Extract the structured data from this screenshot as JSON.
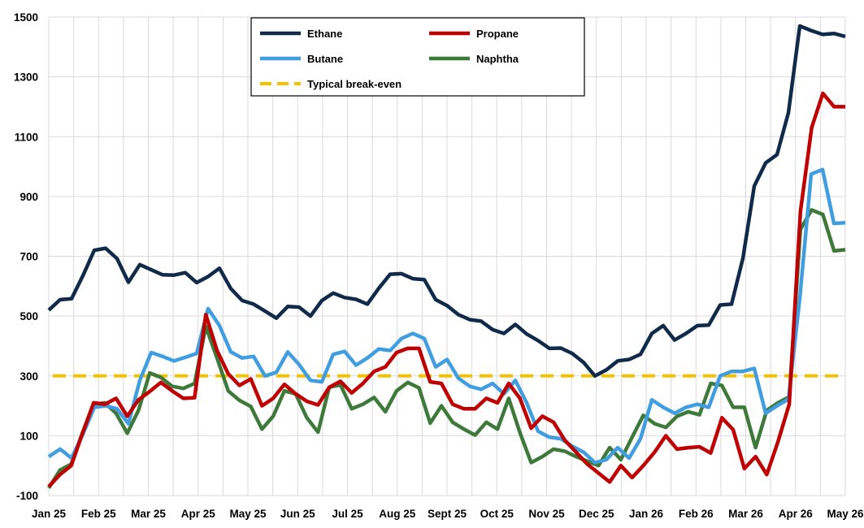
{
  "chart_data": {
    "type": "line",
    "title": "",
    "xlabel": "",
    "ylabel": "",
    "ylim": [
      -100,
      1500
    ],
    "y_ticks": [
      -100,
      100,
      300,
      500,
      700,
      900,
      1100,
      1300,
      1500
    ],
    "x_ticks": [
      "Jan 25",
      "Feb 25",
      "Mar 25",
      "Apr 25",
      "May 25",
      "Jun 25",
      "Jul 25",
      "Aug 25",
      "Sept 25",
      "Oct 25",
      "Nov 25",
      "Dec 25",
      "Jan 26",
      "Feb 26",
      "Mar 26",
      "Apr 26",
      "May 26"
    ],
    "grid": "vertical",
    "legend_position": "top-center",
    "series": [
      {
        "name": "Ethane",
        "color": "#0f2a4a",
        "dash": false,
        "values": [
          520,
          555,
          558,
          635,
          720,
          727,
          692,
          613,
          672,
          655,
          638,
          637,
          645,
          612,
          632,
          660,
          592,
          552,
          540,
          517,
          493,
          532,
          530,
          500,
          552,
          577,
          562,
          556,
          540,
          593,
          640,
          642,
          625,
          622,
          555,
          535,
          505,
          488,
          483,
          455,
          442,
          472,
          440,
          418,
          392,
          393,
          375,
          345,
          300,
          320,
          350,
          355,
          372,
          442,
          468,
          420,
          442,
          468,
          470,
          537,
          540,
          693,
          935,
          1012,
          1040,
          1180,
          1470,
          1455,
          1442,
          1445,
          1435
        ]
      },
      {
        "name": "Propane",
        "color": "#c00000",
        "dash": false,
        "values": [
          -70,
          -30,
          0,
          107,
          210,
          205,
          225,
          165,
          220,
          248,
          278,
          250,
          225,
          227,
          505,
          385,
          307,
          268,
          290,
          200,
          225,
          272,
          240,
          215,
          203,
          262,
          282,
          243,
          275,
          315,
          330,
          378,
          392,
          392,
          280,
          275,
          205,
          190,
          190,
          225,
          210,
          275,
          225,
          125,
          165,
          145,
          85,
          45,
          5,
          -25,
          -55,
          0,
          -40,
          0,
          45,
          100,
          55,
          60,
          63,
          42,
          160,
          120,
          -10,
          30,
          -30,
          80,
          205,
          850,
          1130,
          1245,
          1200,
          1200
        ]
      },
      {
        "name": "Butane",
        "color": "#3f9de0",
        "dash": false,
        "values": [
          30,
          55,
          25,
          105,
          195,
          200,
          190,
          140,
          285,
          378,
          365,
          350,
          362,
          375,
          525,
          468,
          380,
          360,
          365,
          300,
          312,
          380,
          338,
          285,
          280,
          372,
          382,
          336,
          360,
          390,
          385,
          425,
          442,
          425,
          330,
          355,
          292,
          265,
          255,
          275,
          240,
          285,
          210,
          115,
          95,
          90,
          65,
          45,
          10,
          20,
          60,
          25,
          90,
          220,
          195,
          175,
          195,
          205,
          195,
          300,
          315,
          315,
          325,
          175,
          200,
          222,
          560,
          975,
          990,
          810,
          812
        ]
      },
      {
        "name": "Naphtha",
        "color": "#3d7a3a",
        "dash": false,
        "values": [
          -75,
          -15,
          5,
          110,
          205,
          210,
          175,
          108,
          185,
          310,
          295,
          265,
          258,
          275,
          465,
          360,
          250,
          218,
          198,
          122,
          165,
          250,
          240,
          160,
          112,
          262,
          270,
          190,
          205,
          228,
          180,
          250,
          278,
          260,
          142,
          200,
          145,
          122,
          102,
          145,
          122,
          225,
          110,
          10,
          30,
          55,
          48,
          30,
          15,
          0,
          60,
          20,
          95,
          168,
          140,
          128,
          165,
          180,
          170,
          275,
          268,
          195,
          195,
          60,
          185,
          210,
          230,
          790,
          855,
          840,
          718,
          722
        ]
      },
      {
        "name": "Typical break-even",
        "color": "#f5c000",
        "dash": true,
        "values": [
          300,
          300
        ]
      }
    ]
  }
}
